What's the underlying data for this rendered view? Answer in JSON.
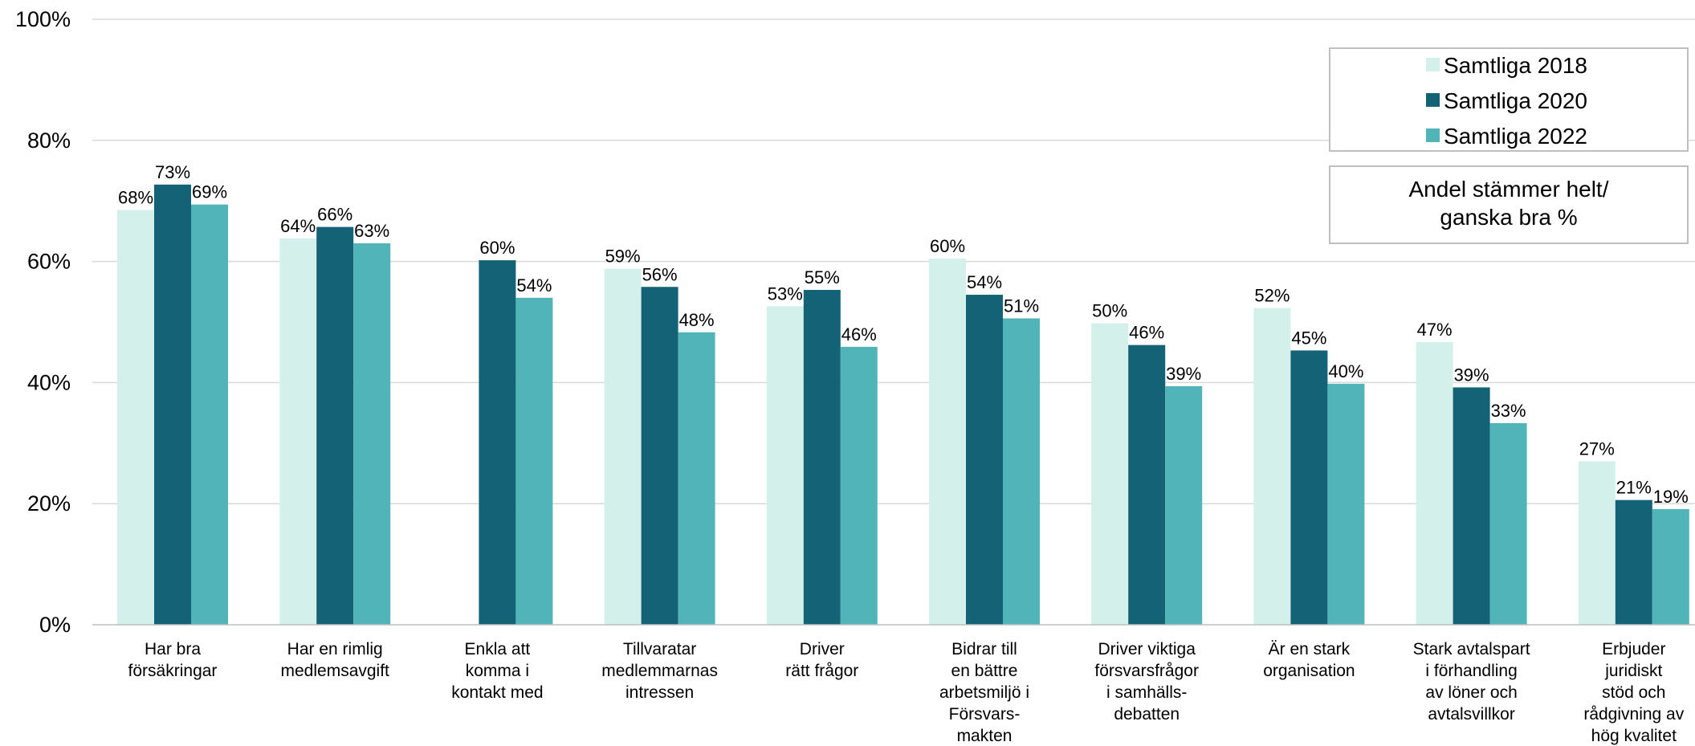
{
  "chart_data": {
    "type": "bar",
    "categories": [
      [
        "Har bra",
        "försäkringar"
      ],
      [
        "Har en rimlig",
        "medlemsavgift"
      ],
      [
        "Enkla att",
        "komma i",
        "kontakt med"
      ],
      [
        "Tillvaratar",
        "medlemmarnas",
        "intressen"
      ],
      [
        "Driver",
        "rätt frågor"
      ],
      [
        "Bidrar till",
        "en bättre",
        "arbetsmiljö i",
        "Försvars-",
        "makten"
      ],
      [
        "Driver viktiga",
        "försvarsfrågor",
        "i samhälls-",
        "debatten"
      ],
      [
        "Är en stark",
        "organisation"
      ],
      [
        "Stark avtalspart",
        "i förhandling",
        "av löner och",
        "avtalsvillkor"
      ],
      [
        "Erbjuder",
        "juridiskt",
        "stöd och",
        "rådgivning av",
        "hög kvalitet"
      ]
    ],
    "series": [
      {
        "name": "Samtliga 2018",
        "color": "#d4f0ea",
        "values": [
          68.5,
          63.8,
          null,
          58.8,
          52.6,
          60.5,
          49.8,
          52.3,
          46.7,
          27.0
        ],
        "labels": [
          "68%",
          "64%",
          "",
          "59%",
          "53%",
          "60%",
          "50%",
          "52%",
          "47%",
          "27%"
        ]
      },
      {
        "name": "Samtliga 2020",
        "color": "#136275",
        "values": [
          72.7,
          65.7,
          60.2,
          55.8,
          55.3,
          54.5,
          46.2,
          45.3,
          39.2,
          20.6
        ],
        "labels": [
          "73%",
          "66%",
          "60%",
          "56%",
          "55%",
          "54%",
          "46%",
          "45%",
          "39%",
          "21%"
        ]
      },
      {
        "name": "Samtliga 2022",
        "color": "#50b4b8",
        "values": [
          69.4,
          63.0,
          54.0,
          48.3,
          45.9,
          50.6,
          39.4,
          39.8,
          33.3,
          19.1
        ],
        "labels": [
          "69%",
          "63%",
          "54%",
          "48%",
          "46%",
          "51%",
          "39%",
          "40%",
          "33%",
          "19%"
        ]
      }
    ],
    "y_ticks": [
      "0%",
      "20%",
      "40%",
      "60%",
      "80%",
      "100%"
    ],
    "ylim": [
      0,
      100
    ],
    "grid": true,
    "legend_position": "top-right",
    "annotation": [
      "Andel stämmer helt/",
      "ganska bra %"
    ]
  }
}
